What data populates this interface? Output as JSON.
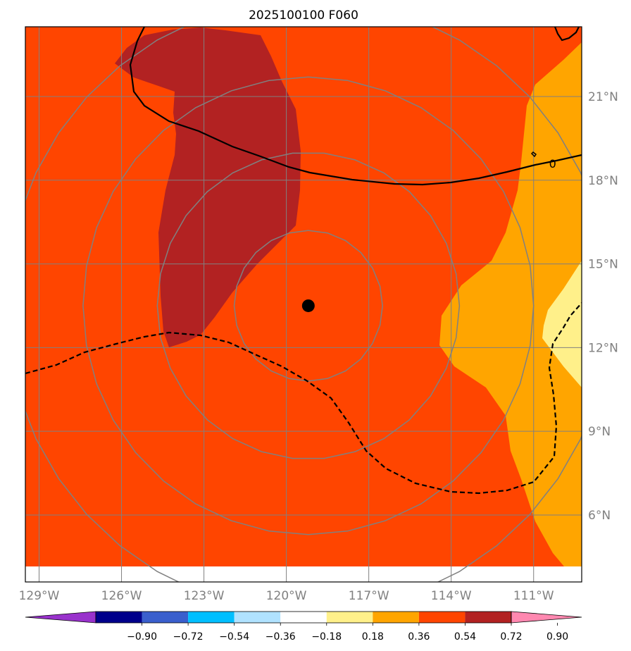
{
  "chart_data": {
    "type": "map",
    "title": "2025100100 F060",
    "projection": "lat-lon",
    "lon_range": [
      -129.5,
      -109.25
    ],
    "lat_range": [
      3.6,
      23.5
    ],
    "lon_ticks": [
      -129,
      -126,
      -123,
      -120,
      -117,
      -114,
      -111
    ],
    "lon_labels": [
      "129°W",
      "126°W",
      "123°W",
      "120°W",
      "117°W",
      "114°W",
      "111°W"
    ],
    "lat_ticks": [
      6,
      9,
      12,
      15,
      18,
      21
    ],
    "lat_labels": [
      "6°N",
      "9°N",
      "12°N",
      "15°N",
      "18°N",
      "21°N"
    ],
    "center_marker": {
      "lon": -119.2,
      "lat": 13.5
    },
    "range_rings_deg": [
      2.7,
      5.5,
      8.2,
      11
    ],
    "contour_labels": [
      {
        "text": "0",
        "lon": -110.0,
        "lat": 18.6
      }
    ],
    "colorbar": {
      "ticks": [
        "−0.90",
        "−0.72",
        "−0.54",
        "−0.36",
        "−0.18",
        "0.18",
        "0.36",
        "0.54",
        "0.72",
        "0.90"
      ],
      "colors": [
        "#9932cc",
        "#00008b",
        "#3a5fcd",
        "#00bfff",
        "#b0e2ff",
        "#ffffff",
        "#fff08a",
        "#ffa500",
        "#ff4500",
        "#b22222",
        "#ff88b0"
      ]
    },
    "fill_colors": {
      "background": "#ff4500",
      "high": "#b22222",
      "mid": "#ffa500",
      "low": "#fff08a"
    }
  }
}
